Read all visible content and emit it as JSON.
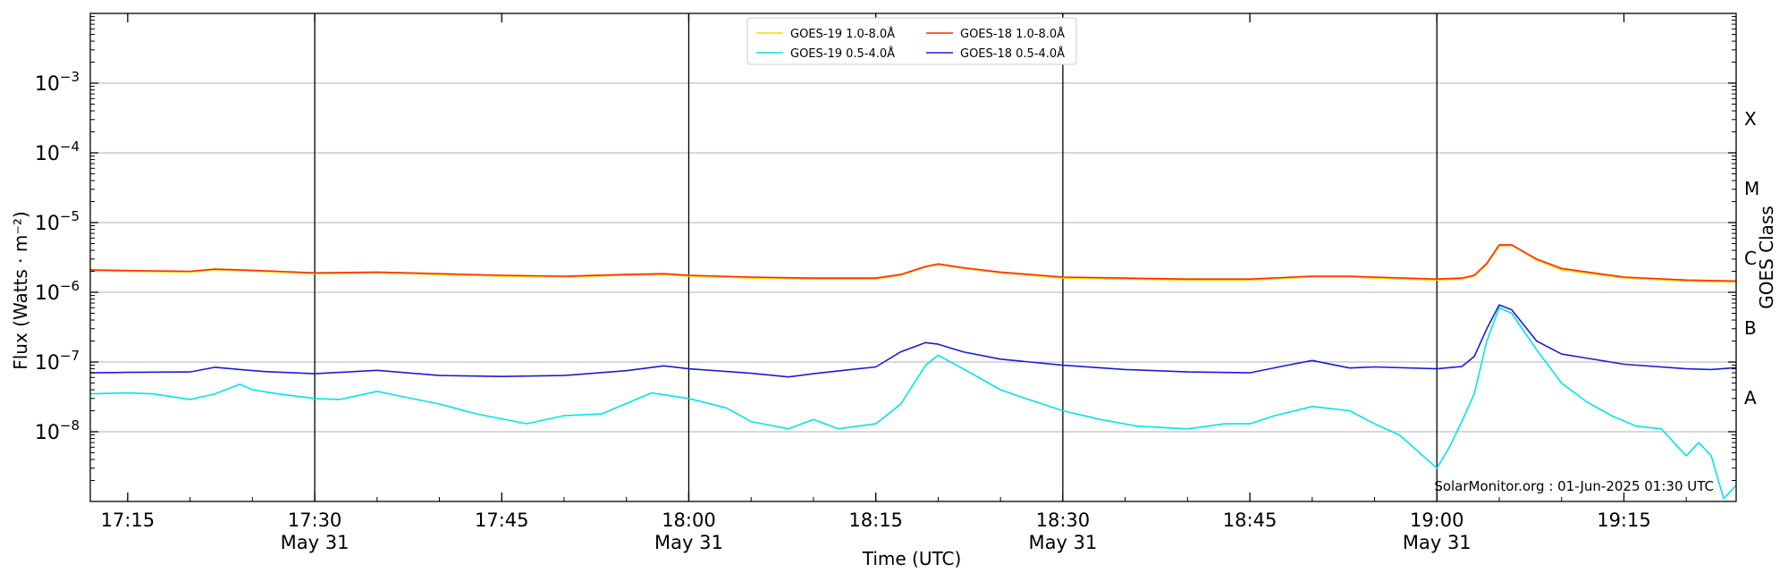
{
  "chart_data": {
    "type": "line",
    "xlabel": "Time (UTC)",
    "ylabel": "Flux (Watts · m⁻²)",
    "right_label": "GOES Class",
    "watermark": "SolarMonitor.org : 01-Jun-2025 01:30 UTC",
    "x_range": [
      "17:12",
      "19:24"
    ],
    "ylim": [
      1e-09,
      0.01
    ],
    "y_scale": "log",
    "grid": "horizontal at decades",
    "legend_position": "top-center",
    "x_ticks": [
      {
        "t": "17:15",
        "label": "17:15",
        "sub": ""
      },
      {
        "t": "17:30",
        "label": "17:30",
        "sub": "May 31"
      },
      {
        "t": "17:45",
        "label": "17:45",
        "sub": ""
      },
      {
        "t": "18:00",
        "label": "18:00",
        "sub": "May 31"
      },
      {
        "t": "18:15",
        "label": "18:15",
        "sub": ""
      },
      {
        "t": "18:30",
        "label": "18:30",
        "sub": "May 31"
      },
      {
        "t": "18:45",
        "label": "18:45",
        "sub": ""
      },
      {
        "t": "19:00",
        "label": "19:00",
        "sub": "May 31"
      },
      {
        "t": "19:15",
        "label": "19:15",
        "sub": ""
      }
    ],
    "day_lines": [
      "17:30",
      "18:00",
      "18:30",
      "19:00"
    ],
    "y_ticks": [
      {
        "value": 0.001,
        "base": "10",
        "exp": "−3"
      },
      {
        "value": 0.0001,
        "base": "10",
        "exp": "−4"
      },
      {
        "value": 1e-05,
        "base": "10",
        "exp": "−5"
      },
      {
        "value": 1e-06,
        "base": "10",
        "exp": "−6"
      },
      {
        "value": 1e-07,
        "base": "10",
        "exp": "−7"
      },
      {
        "value": 1e-08,
        "base": "10",
        "exp": "−8"
      }
    ],
    "goes_classes": [
      {
        "label": "X",
        "value": 0.000316
      },
      {
        "label": "M",
        "value": 3.16e-05
      },
      {
        "label": "C",
        "value": 3.16e-06
      },
      {
        "label": "B",
        "value": 3.16e-07
      },
      {
        "label": "A",
        "value": 3.16e-08
      }
    ],
    "series": [
      {
        "name": "GOES-19 1.0-8.0Å",
        "color": "#ffd700",
        "x": [
          "17:12",
          "17:15",
          "17:20",
          "17:22",
          "17:24",
          "17:27",
          "17:30",
          "17:35",
          "17:40",
          "17:45",
          "17:50",
          "17:55",
          "17:58",
          "18:00",
          "18:05",
          "18:10",
          "18:15",
          "18:17",
          "18:19",
          "18:20",
          "18:22",
          "18:25",
          "18:30",
          "18:35",
          "18:40",
          "18:45",
          "18:50",
          "18:53",
          "18:55",
          "19:00",
          "19:02",
          "19:03",
          "19:04",
          "19:05",
          "19:06",
          "19:08",
          "19:10",
          "19:15",
          "19:20",
          "19:24"
        ],
        "y": [
          2.05e-06,
          2e-06,
          1.95e-06,
          2.1e-06,
          2.05e-06,
          1.95e-06,
          1.85e-06,
          1.9e-06,
          1.8e-06,
          1.7e-06,
          1.65e-06,
          1.75e-06,
          1.8e-06,
          1.7e-06,
          1.6e-06,
          1.55e-06,
          1.55e-06,
          1.75e-06,
          2.3e-06,
          2.5e-06,
          2.2e-06,
          1.9e-06,
          1.6e-06,
          1.55e-06,
          1.5e-06,
          1.5e-06,
          1.65e-06,
          1.65e-06,
          1.6e-06,
          1.5e-06,
          1.55e-06,
          1.7e-06,
          2.5e-06,
          4.6e-06,
          4.7e-06,
          2.9e-06,
          2.1e-06,
          1.6e-06,
          1.45e-06,
          1.4e-06
        ]
      },
      {
        "name": "GOES-18 1.0-8.0Å",
        "color": "#ff2a00",
        "x": [
          "17:12",
          "17:15",
          "17:20",
          "17:22",
          "17:24",
          "17:27",
          "17:30",
          "17:35",
          "17:40",
          "17:45",
          "17:50",
          "17:55",
          "17:58",
          "18:00",
          "18:05",
          "18:10",
          "18:15",
          "18:17",
          "18:19",
          "18:20",
          "18:22",
          "18:25",
          "18:30",
          "18:35",
          "18:40",
          "18:45",
          "18:50",
          "18:53",
          "18:55",
          "19:00",
          "19:02",
          "19:03",
          "19:04",
          "19:05",
          "19:06",
          "19:08",
          "19:10",
          "19:15",
          "19:20",
          "19:24"
        ],
        "y": [
          2.1e-06,
          2.05e-06,
          2e-06,
          2.15e-06,
          2.1e-06,
          2e-06,
          1.9e-06,
          1.95e-06,
          1.85e-06,
          1.75e-06,
          1.7e-06,
          1.8e-06,
          1.85e-06,
          1.75e-06,
          1.65e-06,
          1.6e-06,
          1.6e-06,
          1.8e-06,
          2.35e-06,
          2.55e-06,
          2.25e-06,
          1.95e-06,
          1.65e-06,
          1.6e-06,
          1.55e-06,
          1.55e-06,
          1.7e-06,
          1.7e-06,
          1.65e-06,
          1.55e-06,
          1.6e-06,
          1.75e-06,
          2.6e-06,
          4.8e-06,
          4.8e-06,
          3e-06,
          2.2e-06,
          1.65e-06,
          1.5e-06,
          1.45e-06
        ]
      },
      {
        "name": "GOES-19 0.5-4.0Å",
        "color": "#00e5e5",
        "x": [
          "17:12",
          "17:15",
          "17:17",
          "17:20",
          "17:22",
          "17:24",
          "17:25",
          "17:27",
          "17:30",
          "17:32",
          "17:35",
          "17:37",
          "17:40",
          "17:43",
          "17:47",
          "17:50",
          "17:53",
          "17:57",
          "18:00",
          "18:03",
          "18:05",
          "18:08",
          "18:10",
          "18:12",
          "18:15",
          "18:17",
          "18:19",
          "18:20",
          "18:22",
          "18:25",
          "18:27",
          "18:30",
          "18:33",
          "18:36",
          "18:40",
          "18:43",
          "18:45",
          "18:47",
          "18:50",
          "18:53",
          "18:55",
          "18:57",
          "19:00",
          "19:01",
          "19:02",
          "19:03",
          "19:04",
          "19:05",
          "19:06",
          "19:08",
          "19:10",
          "19:12",
          "19:14",
          "19:16",
          "19:18",
          "19:20",
          "19:21",
          "19:22",
          "19:23",
          "19:24"
        ],
        "y": [
          3.5e-08,
          3.6e-08,
          3.5e-08,
          2.9e-08,
          3.5e-08,
          4.8e-08,
          4e-08,
          3.5e-08,
          3e-08,
          2.9e-08,
          3.8e-08,
          3.2e-08,
          2.5e-08,
          1.8e-08,
          1.3e-08,
          1.7e-08,
          1.8e-08,
          3.6e-08,
          3e-08,
          2.2e-08,
          1.4e-08,
          1.1e-08,
          1.5e-08,
          1.1e-08,
          1.3e-08,
          2.5e-08,
          9e-08,
          1.25e-07,
          8e-08,
          4e-08,
          3e-08,
          2e-08,
          1.5e-08,
          1.2e-08,
          1.1e-08,
          1.3e-08,
          1.3e-08,
          1.7e-08,
          2.3e-08,
          2e-08,
          1.3e-08,
          9e-09,
          3e-09,
          6e-09,
          1.4e-08,
          3.5e-08,
          2e-07,
          6e-07,
          5e-07,
          1.5e-07,
          5e-08,
          2.7e-08,
          1.7e-08,
          1.2e-08,
          1.1e-08,
          4.5e-09,
          7e-09,
          4.5e-09,
          1.1e-09,
          1.7e-09
        ]
      },
      {
        "name": "GOES-18 0.5-4.0Å",
        "color": "#1c1cd6",
        "x": [
          "17:12",
          "17:15",
          "17:20",
          "17:22",
          "17:24",
          "17:26",
          "17:30",
          "17:35",
          "17:40",
          "17:45",
          "17:50",
          "17:55",
          "17:58",
          "18:00",
          "18:05",
          "18:08",
          "18:10",
          "18:13",
          "18:15",
          "18:17",
          "18:19",
          "18:20",
          "18:22",
          "18:25",
          "18:30",
          "18:35",
          "18:40",
          "18:45",
          "18:48",
          "18:50",
          "18:53",
          "18:55",
          "19:00",
          "19:02",
          "19:03",
          "19:04",
          "19:05",
          "19:06",
          "19:08",
          "19:10",
          "19:15",
          "19:20",
          "19:22",
          "19:24"
        ],
        "y": [
          7e-08,
          7.1e-08,
          7.2e-08,
          8.4e-08,
          7.8e-08,
          7.3e-08,
          6.8e-08,
          7.6e-08,
          6.4e-08,
          6.2e-08,
          6.4e-08,
          7.5e-08,
          8.8e-08,
          8e-08,
          6.9e-08,
          6.1e-08,
          6.8e-08,
          7.8e-08,
          8.5e-08,
          1.4e-07,
          1.9e-07,
          1.8e-07,
          1.4e-07,
          1.1e-07,
          9e-08,
          7.8e-08,
          7.2e-08,
          7e-08,
          9e-08,
          1.05e-07,
          8.2e-08,
          8.5e-08,
          8e-08,
          8.6e-08,
          1.2e-07,
          3e-07,
          6.6e-07,
          5.6e-07,
          2e-07,
          1.3e-07,
          9.3e-08,
          8e-08,
          7.8e-08,
          8.3e-08
        ]
      }
    ]
  }
}
